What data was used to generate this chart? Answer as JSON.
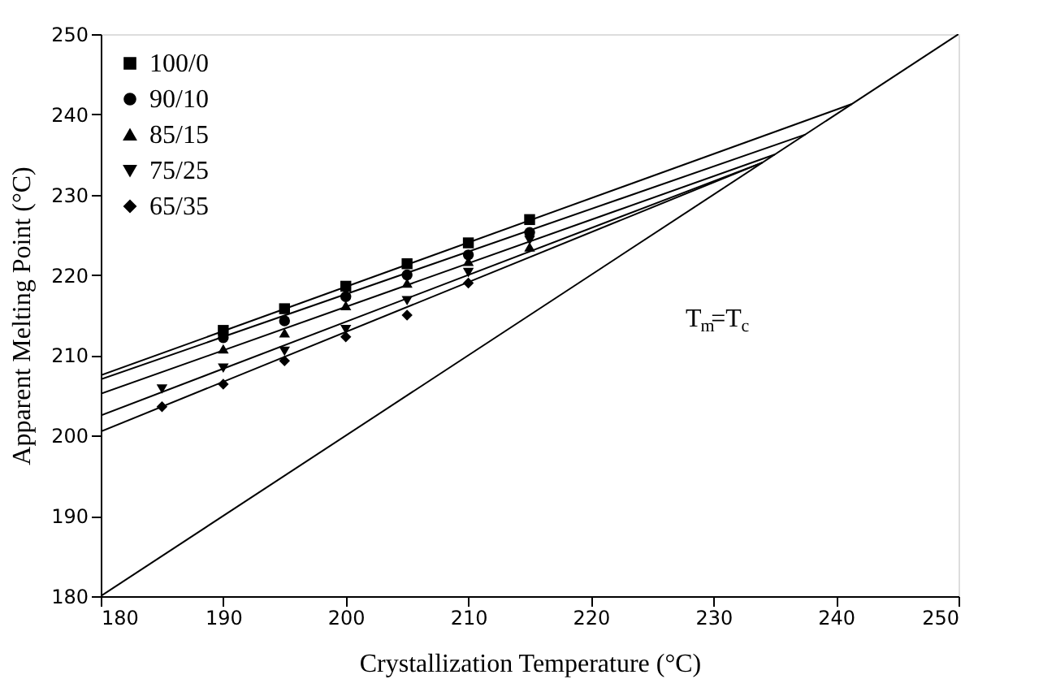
{
  "chart_data": {
    "type": "scatter",
    "xlabel": "Crystallization Temperature (°C)",
    "ylabel": "Apparent Melting Point (°C)",
    "xlim": [
      180,
      250
    ],
    "ylim": [
      180,
      250
    ],
    "xticks": [
      180,
      190,
      200,
      210,
      220,
      230,
      240,
      250
    ],
    "yticks": [
      180,
      190,
      200,
      210,
      220,
      230,
      240,
      250
    ],
    "grid": false,
    "legend": "top left",
    "annotations": [
      "T$_{m}$=T$_{c}$"
    ],
    "series": [
      {
        "name": "100/0",
        "color": "#000000",
        "marker": "square",
        "x": [
          190,
          195,
          200,
          205,
          210,
          215
        ],
        "values": [
          213.1,
          215.8,
          218.6,
          221.4,
          224.0,
          226.9
        ]
      },
      {
        "name": "90/10",
        "color": "#000000",
        "marker": "circle",
        "x": [
          190,
          195,
          200,
          205,
          210,
          215
        ],
        "values": [
          212.2,
          214.3,
          217.3,
          220.0,
          222.5,
          225.3
        ]
      },
      {
        "name": "85/15",
        "color": "#000000",
        "marker": "triangle",
        "x": [
          190,
          195,
          200,
          205,
          210,
          215
        ],
        "values": [
          210.8,
          212.8,
          216.2,
          219.0,
          221.7,
          223.5
        ]
      },
      {
        "name": "75/25",
        "color": "#000000",
        "marker": "triangle-down",
        "x": [
          185,
          190,
          195,
          200,
          205,
          210,
          215
        ],
        "values": [
          205.8,
          208.4,
          210.5,
          213.2,
          216.8,
          220.3,
          224.3
        ]
      },
      {
        "name": "65/35",
        "color": "#000000",
        "marker": "diamond",
        "x": [
          185,
          190,
          195,
          200,
          205,
          210
        ],
        "values": [
          203.6,
          206.4,
          209.3,
          212.3,
          215.0,
          219.0
        ]
      },
      {
        "type": "line",
        "color": "#000000",
        "marker": "none",
        "x": [
          180,
          241.3
        ],
        "values": [
          207.5,
          241.3
        ]
      },
      {
        "type": "line",
        "color": "#000000",
        "marker": "none",
        "x": [
          180,
          237.5
        ],
        "values": [
          207.0,
          237.5
        ]
      },
      {
        "type": "line",
        "color": "#000000",
        "marker": "none",
        "x": [
          180,
          235.0
        ],
        "values": [
          205.2,
          235.0
        ]
      },
      {
        "type": "line",
        "color": "#000000",
        "marker": "none",
        "x": [
          180,
          234.0
        ],
        "values": [
          202.5,
          234.0
        ]
      },
      {
        "type": "line",
        "color": "#000000",
        "marker": "none",
        "x": [
          180,
          234.0
        ],
        "values": [
          200.5,
          234.0
        ]
      },
      {
        "type": "line",
        "color": "#000000",
        "marker": "none",
        "x": [
          180,
          250
        ],
        "values": [
          180,
          250
        ]
      }
    ]
  }
}
